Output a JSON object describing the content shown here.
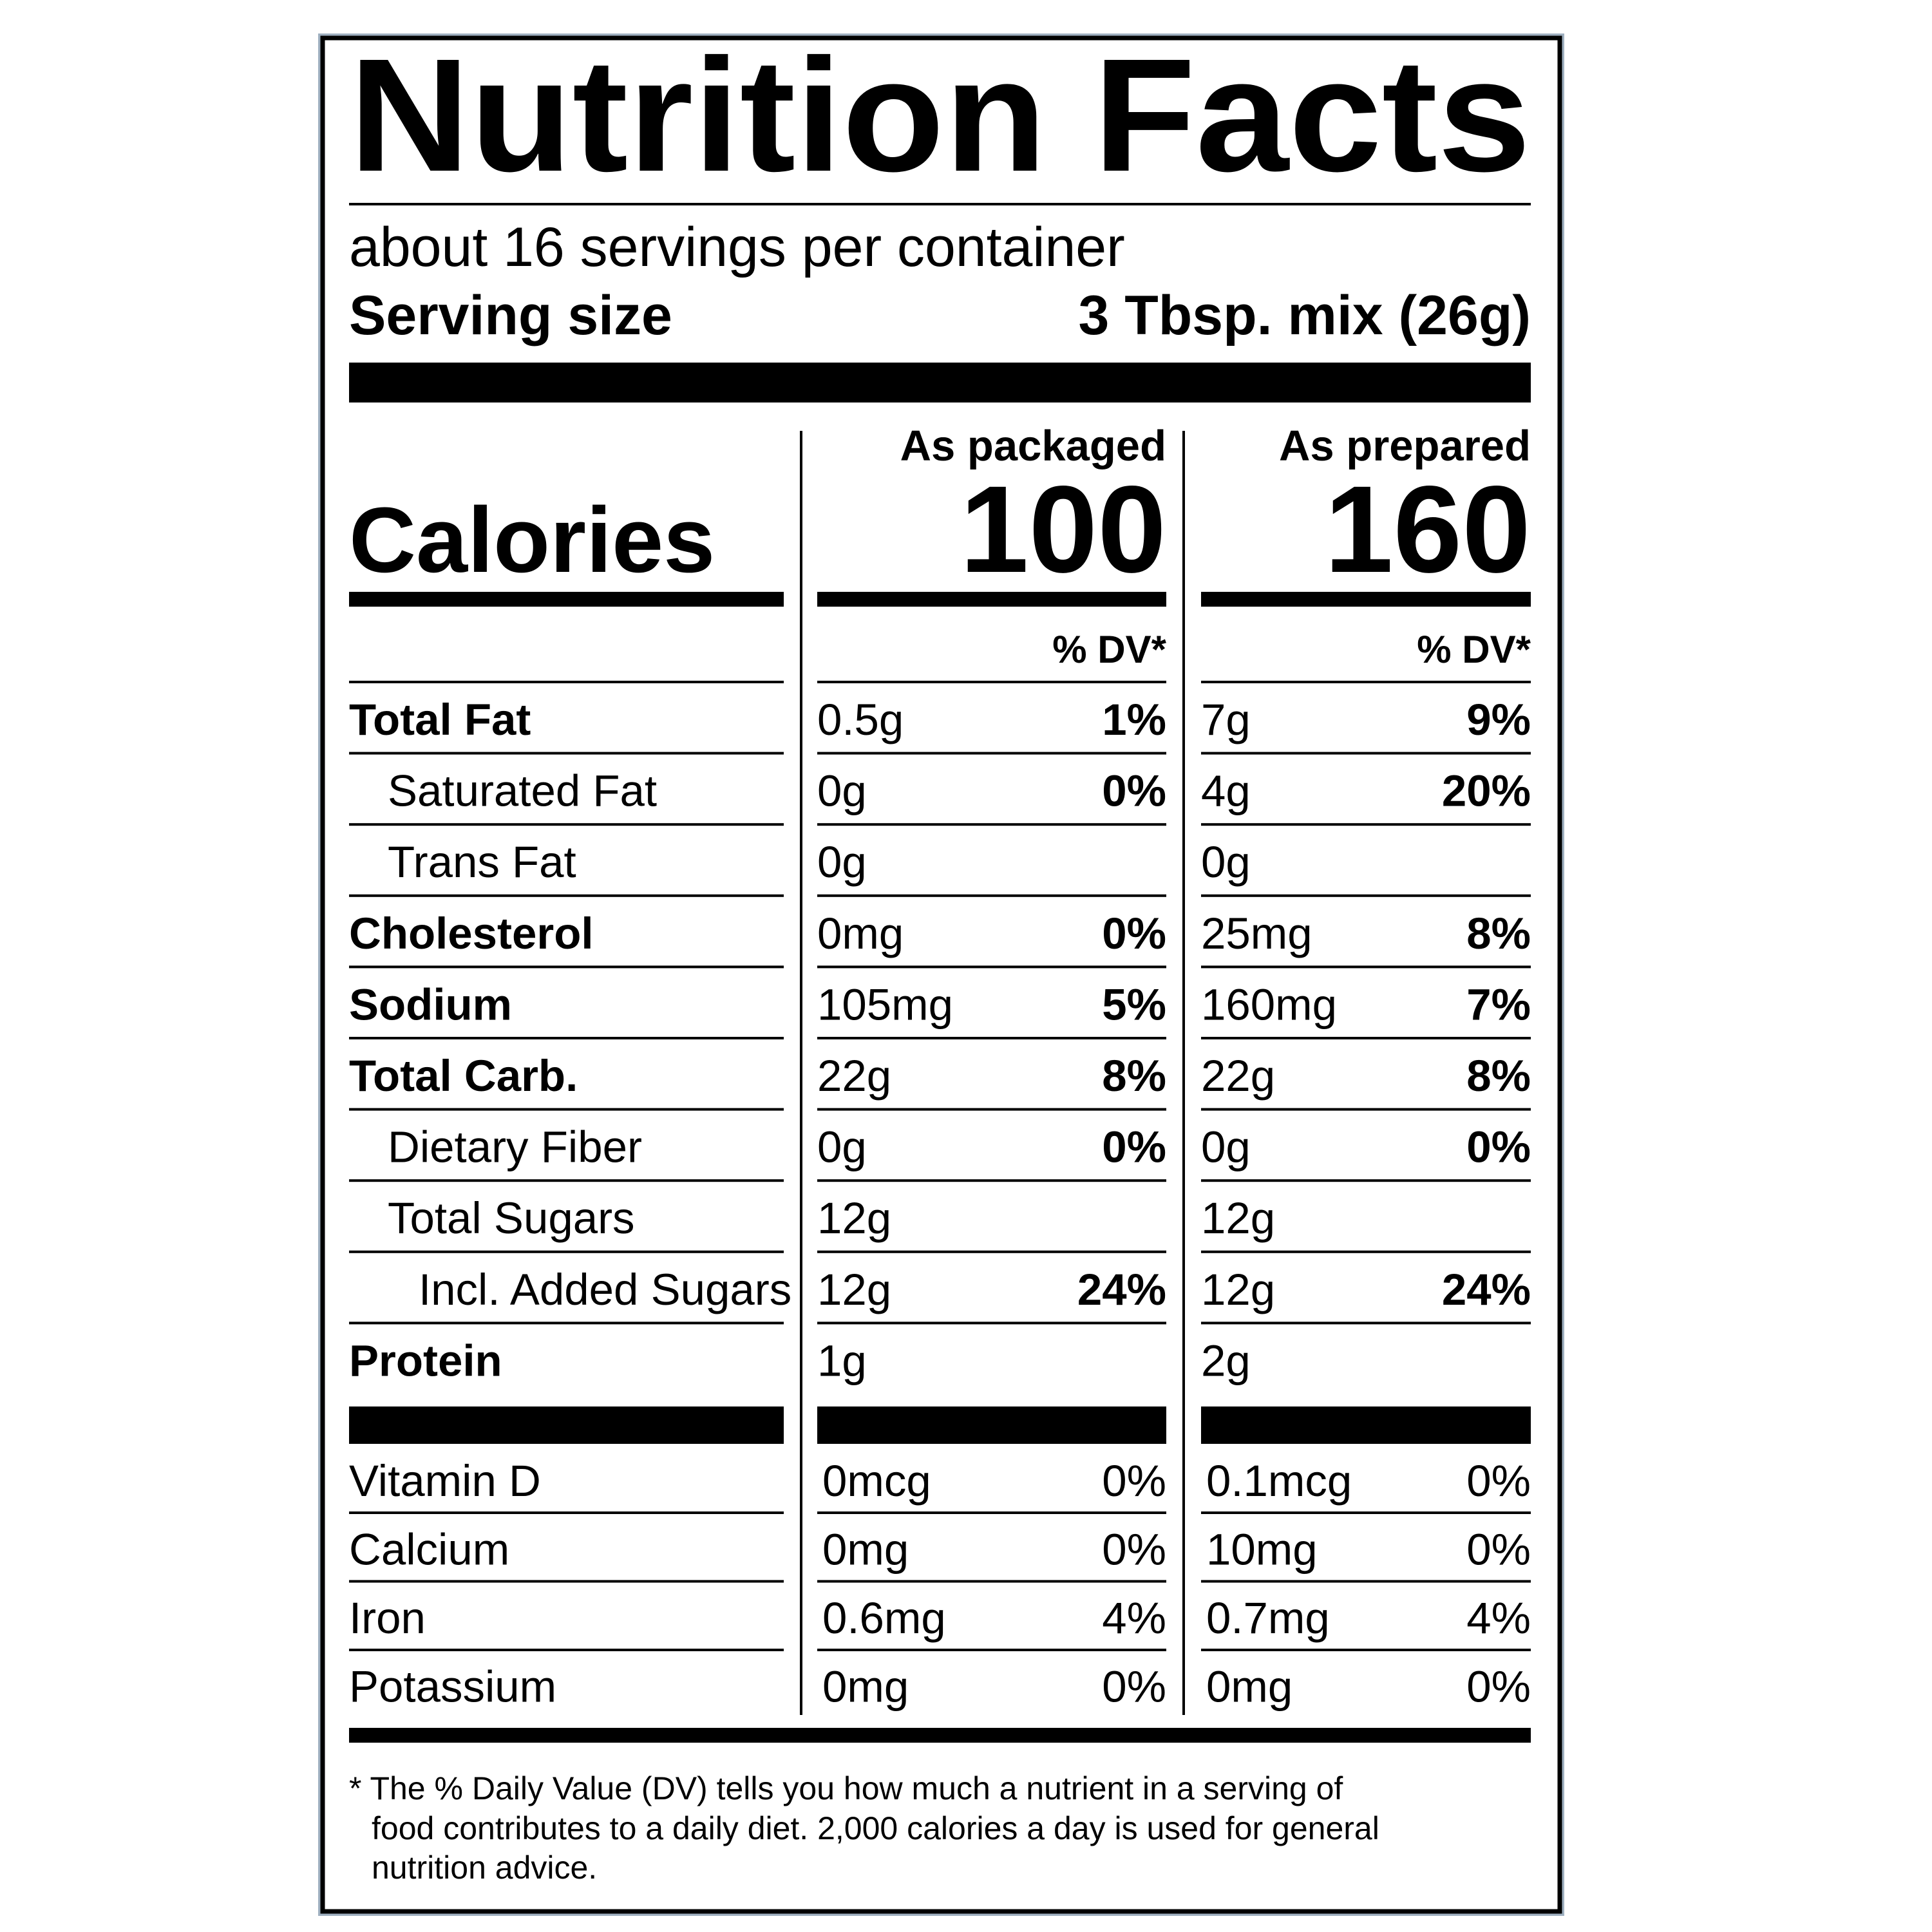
{
  "header": {
    "title": "Nutrition Facts",
    "servings": "about 16 servings per container",
    "serving_size_label": "Serving size",
    "serving_size": "3 Tbsp. mix (26g)"
  },
  "calories_label": "Calories",
  "columns": [
    {
      "heading": "As packaged",
      "calories": "100",
      "dv_heading": "% DV*"
    },
    {
      "heading": "As prepared",
      "calories": "160",
      "dv_heading": "% DV*"
    }
  ],
  "nutrients": [
    {
      "name": "Total Fat",
      "values": [
        {
          "amount": "0.5g",
          "dv": "1%"
        },
        {
          "amount": "7g",
          "dv": "9%"
        }
      ]
    },
    {
      "name": "Saturated Fat",
      "values": [
        {
          "amount": "0g",
          "dv": "0%"
        },
        {
          "amount": "4g",
          "dv": "20%"
        }
      ]
    },
    {
      "name": "Trans Fat",
      "values": [
        {
          "amount": "0g"
        },
        {
          "amount": "0g"
        }
      ]
    },
    {
      "name": "Cholesterol",
      "values": [
        {
          "amount": "0mg",
          "dv": "0%"
        },
        {
          "amount": "25mg",
          "dv": "8%"
        }
      ]
    },
    {
      "name": "Sodium",
      "values": [
        {
          "amount": "105mg",
          "dv": "5%"
        },
        {
          "amount": "160mg",
          "dv": "7%"
        }
      ]
    },
    {
      "name": "Total Carb.",
      "values": [
        {
          "amount": "22g",
          "dv": "8%"
        },
        {
          "amount": "22g",
          "dv": "8%"
        }
      ]
    },
    {
      "name": "Dietary Fiber",
      "values": [
        {
          "amount": "0g",
          "dv": "0%"
        },
        {
          "amount": "0g",
          "dv": "0%"
        }
      ]
    },
    {
      "name": "Total Sugars",
      "values": [
        {
          "amount": "12g"
        },
        {
          "amount": "12g"
        }
      ]
    },
    {
      "name": "Incl. Added Sugars",
      "values": [
        {
          "amount": "12g",
          "dv": "24%"
        },
        {
          "amount": "12g",
          "dv": "24%"
        }
      ]
    },
    {
      "name": "Protein",
      "values": [
        {
          "amount": "1g"
        },
        {
          "amount": "2g"
        }
      ]
    }
  ],
  "vitamins": [
    {
      "name": "Vitamin D",
      "values": [
        {
          "amount": "0mcg",
          "dv": "0%"
        },
        {
          "amount": "0.1mcg",
          "dv": "0%"
        }
      ]
    },
    {
      "name": "Calcium",
      "values": [
        {
          "amount": "0mg",
          "dv": "0%"
        },
        {
          "amount": "10mg",
          "dv": "0%"
        }
      ]
    },
    {
      "name": "Iron",
      "values": [
        {
          "amount": "0.6mg",
          "dv": "4%"
        },
        {
          "amount": "0.7mg",
          "dv": "4%"
        }
      ]
    },
    {
      "name": "Potassium",
      "values": [
        {
          "amount": "0mg",
          "dv": "0%"
        },
        {
          "amount": "0mg",
          "dv": "0%"
        }
      ]
    }
  ],
  "footnote": [
    "* The % Daily Value (DV) tells you how much a nutrient in a serving of",
    "food contributes to a daily diet. 2,000 calories a day is used for general",
    "nutrition advice."
  ]
}
